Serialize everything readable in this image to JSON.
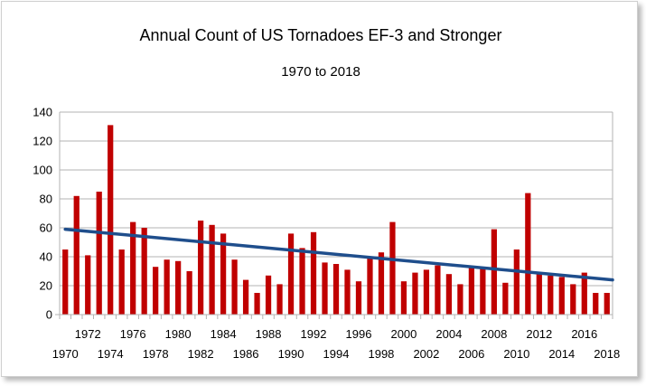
{
  "chart_data": {
    "type": "bar",
    "title": "Annual Count of US Tornadoes EF-3 and Stronger",
    "subtitle": "1970 to 2018",
    "xlabel": "",
    "ylabel": "",
    "ylim": [
      0,
      140
    ],
    "yticks": [
      0,
      20,
      40,
      60,
      80,
      100,
      120,
      140
    ],
    "grid": "horizontal",
    "legend": "none",
    "bar_color": "#c00000",
    "trend_color": "#1f4e8c",
    "categories": [
      1970,
      1971,
      1972,
      1973,
      1974,
      1975,
      1976,
      1977,
      1978,
      1979,
      1980,
      1981,
      1982,
      1983,
      1984,
      1985,
      1986,
      1987,
      1988,
      1989,
      1990,
      1991,
      1992,
      1993,
      1994,
      1995,
      1996,
      1997,
      1998,
      1999,
      2000,
      2001,
      2002,
      2003,
      2004,
      2005,
      2006,
      2007,
      2008,
      2009,
      2010,
      2011,
      2012,
      2013,
      2014,
      2015,
      2016,
      2017,
      2018
    ],
    "tick_labels_row1": [
      "1972",
      "1976",
      "1980",
      "1984",
      "1988",
      "1992",
      "1996",
      "2000",
      "2004",
      "2008",
      "2012",
      "2016"
    ],
    "tick_labels_row2": [
      "1970",
      "1974",
      "1978",
      "1982",
      "1986",
      "1990",
      "1994",
      "1998",
      "2002",
      "2006",
      "2010",
      "2014",
      "2018"
    ],
    "series": [
      {
        "values": [
          45,
          82,
          41,
          85,
          131,
          45,
          64,
          60,
          33,
          38,
          37,
          30,
          65,
          62,
          56,
          38,
          24,
          15,
          27,
          21,
          56,
          46,
          57,
          36,
          35,
          31,
          23,
          39,
          43,
          64,
          23,
          29,
          31,
          34,
          28,
          21,
          33,
          32,
          59,
          22,
          45,
          84,
          28,
          27,
          26,
          21,
          29,
          15,
          15
        ]
      }
    ],
    "trendline": {
      "x": [
        1970,
        2018
      ],
      "y": [
        59,
        24
      ]
    }
  }
}
